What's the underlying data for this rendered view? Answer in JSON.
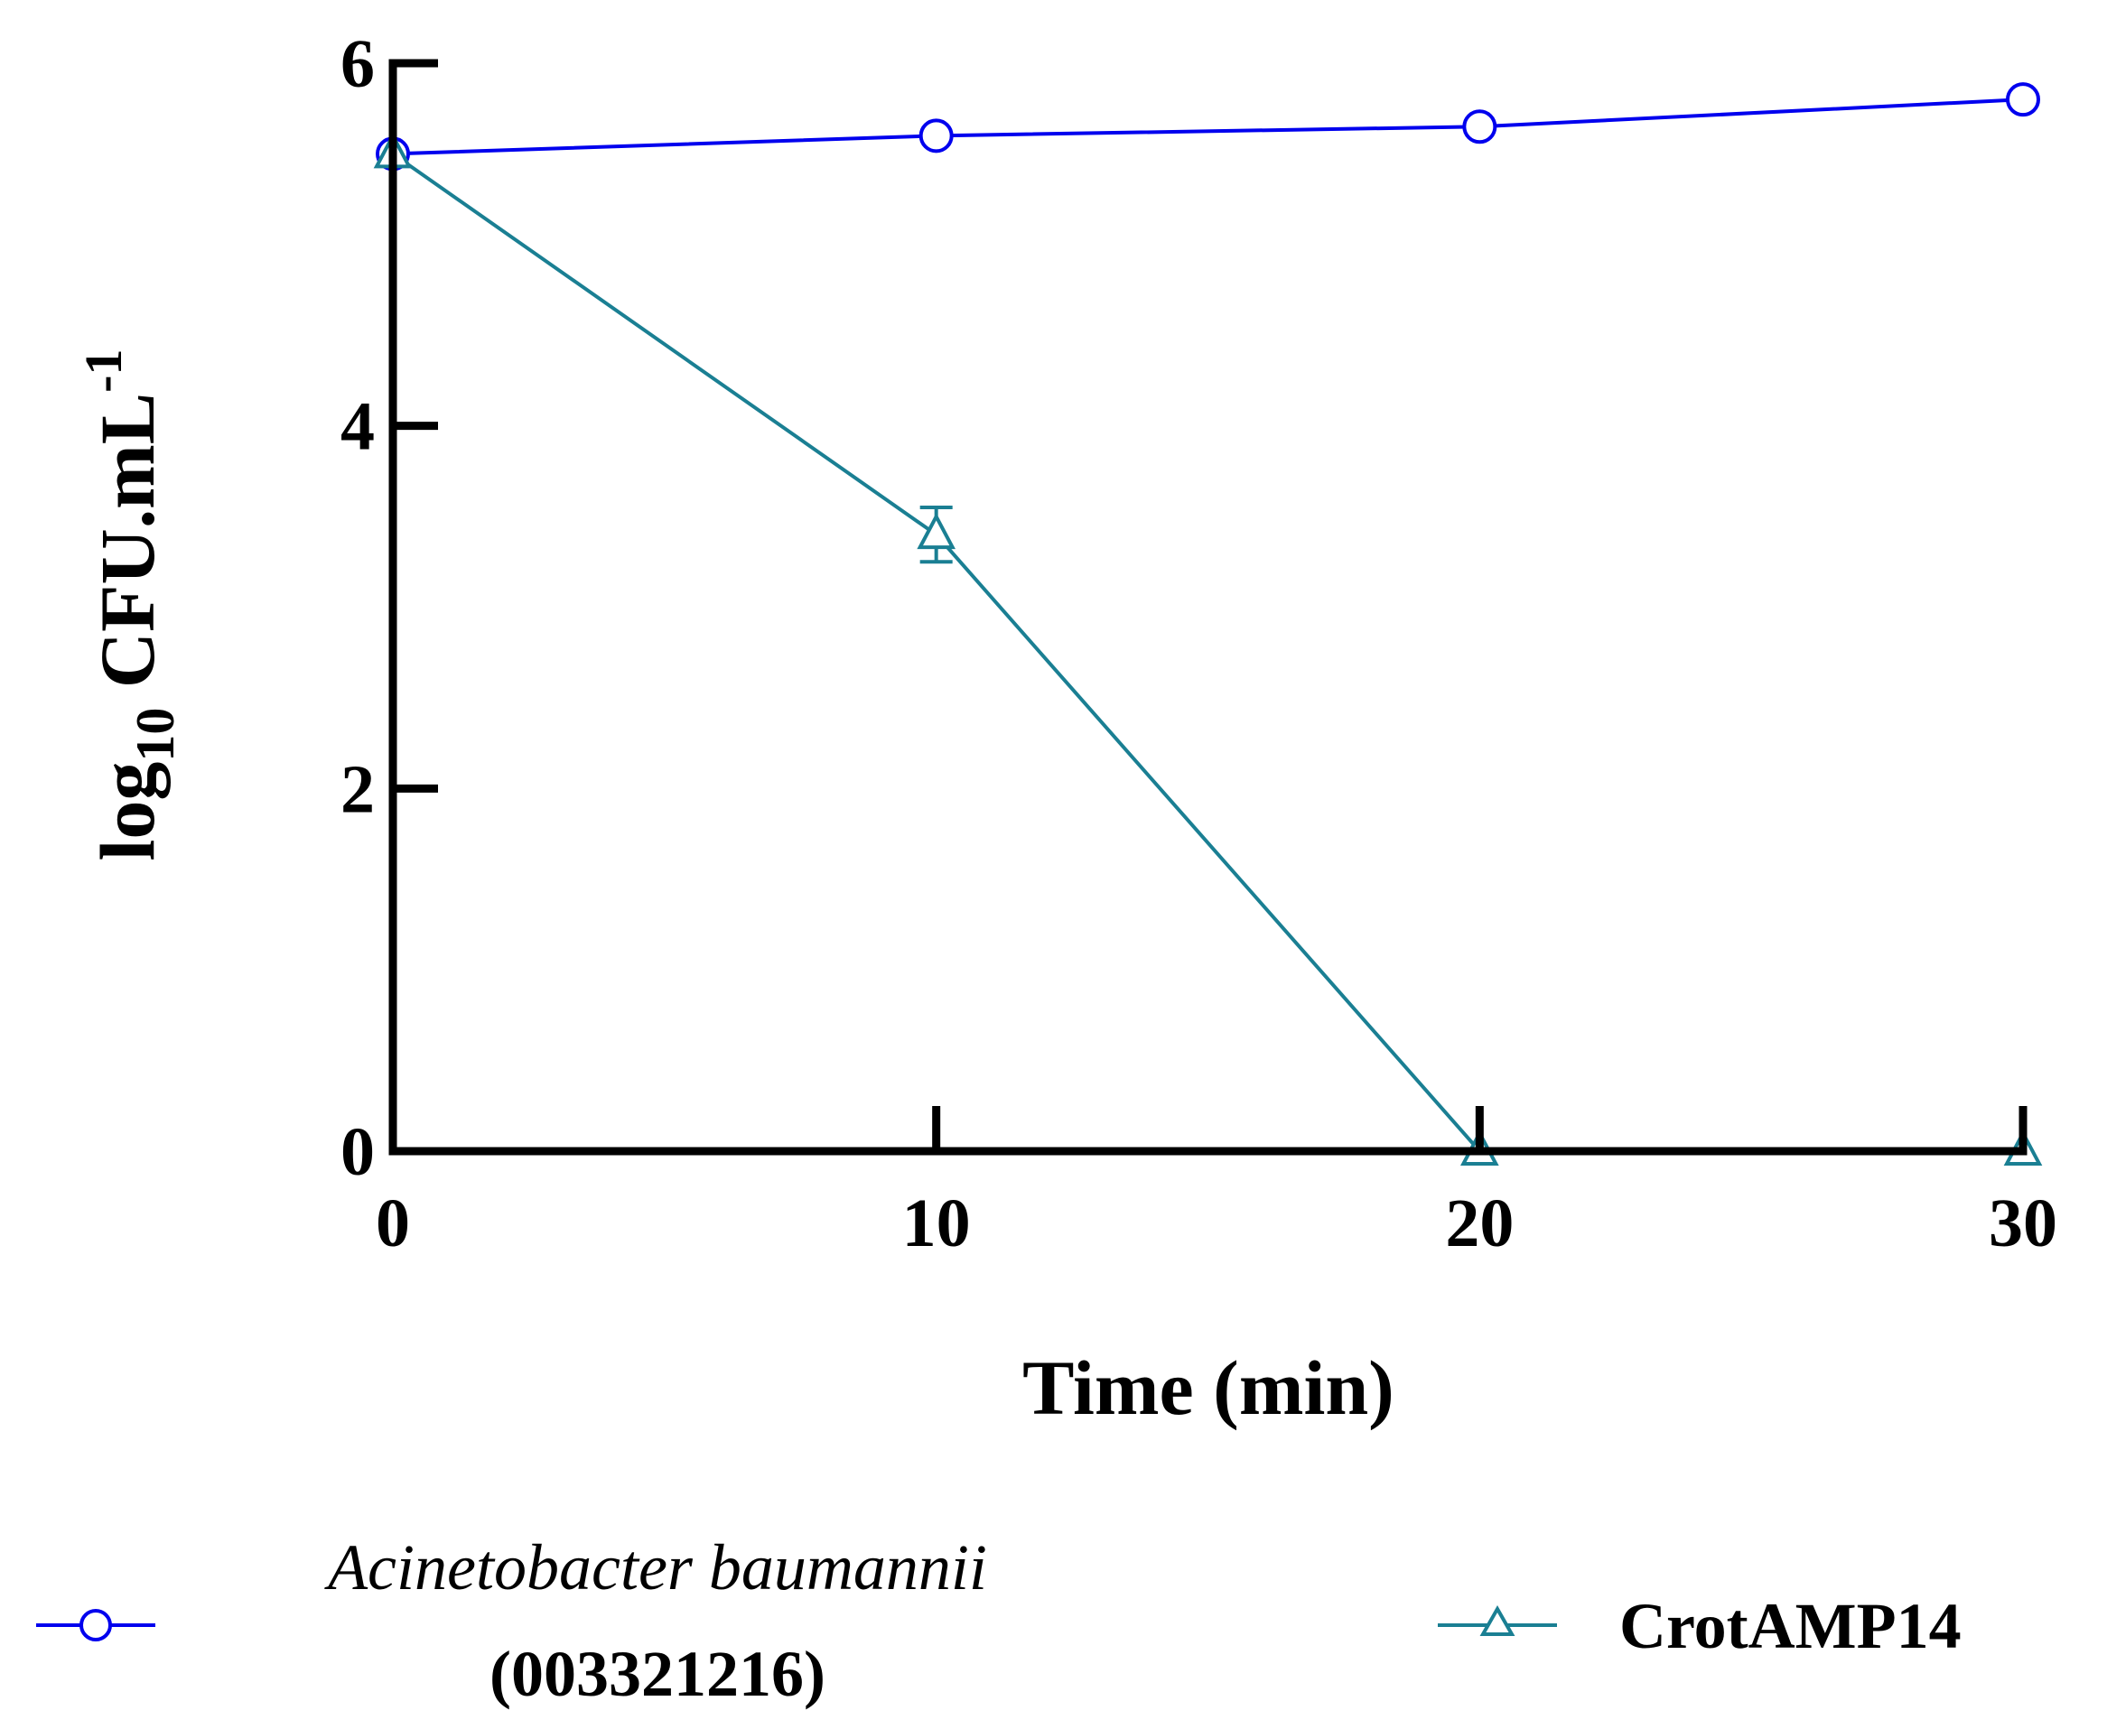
{
  "chart_data": {
    "type": "line",
    "title": "",
    "xlabel": "Time (min)",
    "ylabel": {
      "prefix": "log",
      "subscript": "10",
      "main": " CFU.mL",
      "superscript": "-1"
    },
    "x": [
      0,
      10,
      20,
      30
    ],
    "xlim": [
      0,
      30
    ],
    "ylim": [
      0,
      6
    ],
    "x_ticks": [
      0,
      10,
      20,
      30
    ],
    "y_ticks": [
      0,
      2,
      4,
      6
    ],
    "grid": false,
    "legend_position": "bottom",
    "series": [
      {
        "name": "Acinetobacter baumannii (003321216)",
        "name_line1": "Acinetobacter baumannii",
        "name_line2": "(003321216)",
        "color": "#0000EE",
        "marker": "circle",
        "values": [
          5.5,
          5.6,
          5.65,
          5.8
        ],
        "errors": [
          0,
          0,
          0,
          0
        ]
      },
      {
        "name": "CrotAMP14",
        "color": "#1A7F93",
        "marker": "triangle",
        "values": [
          5.5,
          3.4,
          0,
          0
        ],
        "errors": [
          0,
          0.15,
          0,
          0
        ]
      }
    ]
  }
}
